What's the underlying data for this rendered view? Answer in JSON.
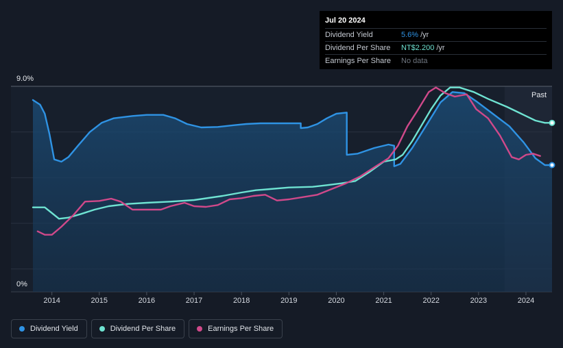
{
  "chart_data": {
    "type": "line",
    "x_start": 2013.6,
    "x_end": 2024.55,
    "ylim": [
      0,
      9.0
    ],
    "y_tick_labels": [
      "9.0%",
      "0%"
    ],
    "x_ticks": [
      2014,
      2015,
      2016,
      2017,
      2018,
      2019,
      2020,
      2021,
      2022,
      2023,
      2024
    ],
    "past_label": "Past",
    "forecast_start": 2023.55,
    "series": [
      {
        "name": "Dividend Yield",
        "color": "#2f93e4",
        "filled": true,
        "points": [
          [
            2013.6,
            8.4
          ],
          [
            2013.75,
            8.2
          ],
          [
            2013.85,
            7.8
          ],
          [
            2013.95,
            6.9
          ],
          [
            2014.05,
            5.8
          ],
          [
            2014.2,
            5.7
          ],
          [
            2014.35,
            5.9
          ],
          [
            2014.55,
            6.4
          ],
          [
            2014.8,
            7.0
          ],
          [
            2015.05,
            7.4
          ],
          [
            2015.3,
            7.6
          ],
          [
            2015.7,
            7.7
          ],
          [
            2016.0,
            7.75
          ],
          [
            2016.35,
            7.75
          ],
          [
            2016.6,
            7.6
          ],
          [
            2016.85,
            7.35
          ],
          [
            2017.15,
            7.2
          ],
          [
            2017.5,
            7.22
          ],
          [
            2017.85,
            7.3
          ],
          [
            2018.1,
            7.35
          ],
          [
            2018.4,
            7.38
          ],
          [
            2019.25,
            7.38
          ],
          [
            2019.25,
            7.17
          ],
          [
            2019.4,
            7.2
          ],
          [
            2019.6,
            7.35
          ],
          [
            2019.8,
            7.6
          ],
          [
            2020.0,
            7.8
          ],
          [
            2020.22,
            7.85
          ],
          [
            2020.22,
            6.0
          ],
          [
            2020.45,
            6.05
          ],
          [
            2020.8,
            6.3
          ],
          [
            2021.1,
            6.45
          ],
          [
            2021.22,
            6.4
          ],
          [
            2021.22,
            5.5
          ],
          [
            2021.35,
            5.6
          ],
          [
            2021.6,
            6.3
          ],
          [
            2021.9,
            7.3
          ],
          [
            2022.2,
            8.3
          ],
          [
            2022.45,
            8.75
          ],
          [
            2022.7,
            8.7
          ],
          [
            2022.95,
            8.35
          ],
          [
            2023.3,
            7.8
          ],
          [
            2023.65,
            7.25
          ],
          [
            2023.95,
            6.55
          ],
          [
            2024.2,
            5.85
          ],
          [
            2024.4,
            5.55
          ],
          [
            2024.55,
            5.55
          ]
        ]
      },
      {
        "name": "Dividend Per Share",
        "color": "#6fe3d2",
        "filled": false,
        "points": [
          [
            2013.6,
            3.7
          ],
          [
            2013.85,
            3.7
          ],
          [
            2014.0,
            3.45
          ],
          [
            2014.15,
            3.2
          ],
          [
            2014.35,
            3.25
          ],
          [
            2014.6,
            3.4
          ],
          [
            2014.9,
            3.6
          ],
          [
            2015.2,
            3.75
          ],
          [
            2015.6,
            3.85
          ],
          [
            2016.0,
            3.9
          ],
          [
            2016.5,
            3.95
          ],
          [
            2017.0,
            4.02
          ],
          [
            2017.2,
            4.08
          ],
          [
            2017.6,
            4.2
          ],
          [
            2018.0,
            4.35
          ],
          [
            2018.3,
            4.45
          ],
          [
            2018.6,
            4.5
          ],
          [
            2019.0,
            4.57
          ],
          [
            2019.5,
            4.6
          ],
          [
            2019.8,
            4.67
          ],
          [
            2020.1,
            4.75
          ],
          [
            2020.4,
            4.85
          ],
          [
            2020.7,
            5.25
          ],
          [
            2021.0,
            5.7
          ],
          [
            2021.25,
            5.8
          ],
          [
            2021.4,
            6.0
          ],
          [
            2021.6,
            6.6
          ],
          [
            2021.8,
            7.3
          ],
          [
            2022.0,
            8.0
          ],
          [
            2022.2,
            8.6
          ],
          [
            2022.4,
            8.95
          ],
          [
            2022.6,
            8.95
          ],
          [
            2022.9,
            8.75
          ],
          [
            2023.2,
            8.45
          ],
          [
            2023.6,
            8.1
          ],
          [
            2023.9,
            7.8
          ],
          [
            2024.2,
            7.5
          ],
          [
            2024.4,
            7.4
          ],
          [
            2024.55,
            7.4
          ]
        ]
      },
      {
        "name": "Earnings Per Share",
        "color": "#d0498a",
        "filled": false,
        "points": [
          [
            2013.7,
            2.65
          ],
          [
            2013.85,
            2.5
          ],
          [
            2014.0,
            2.5
          ],
          [
            2014.2,
            2.85
          ],
          [
            2014.45,
            3.35
          ],
          [
            2014.7,
            3.95
          ],
          [
            2015.0,
            3.98
          ],
          [
            2015.25,
            4.08
          ],
          [
            2015.45,
            3.95
          ],
          [
            2015.7,
            3.6
          ],
          [
            2016.0,
            3.6
          ],
          [
            2016.3,
            3.6
          ],
          [
            2016.5,
            3.75
          ],
          [
            2016.8,
            3.9
          ],
          [
            2017.0,
            3.75
          ],
          [
            2017.25,
            3.72
          ],
          [
            2017.5,
            3.8
          ],
          [
            2017.75,
            4.05
          ],
          [
            2018.0,
            4.1
          ],
          [
            2018.25,
            4.2
          ],
          [
            2018.5,
            4.25
          ],
          [
            2018.75,
            4.0
          ],
          [
            2019.0,
            4.05
          ],
          [
            2019.3,
            4.15
          ],
          [
            2019.6,
            4.25
          ],
          [
            2019.9,
            4.5
          ],
          [
            2020.2,
            4.75
          ],
          [
            2020.5,
            5.05
          ],
          [
            2020.8,
            5.45
          ],
          [
            2021.1,
            5.85
          ],
          [
            2021.3,
            6.4
          ],
          [
            2021.5,
            7.25
          ],
          [
            2021.7,
            7.9
          ],
          [
            2021.95,
            8.75
          ],
          [
            2022.1,
            8.95
          ],
          [
            2022.3,
            8.7
          ],
          [
            2022.5,
            8.55
          ],
          [
            2022.75,
            8.65
          ],
          [
            2022.95,
            8.0
          ],
          [
            2023.2,
            7.6
          ],
          [
            2023.45,
            6.85
          ],
          [
            2023.7,
            5.9
          ],
          [
            2023.85,
            5.8
          ],
          [
            2024.0,
            6.0
          ],
          [
            2024.15,
            6.05
          ],
          [
            2024.3,
            5.95
          ]
        ]
      }
    ]
  },
  "tooltip": {
    "date": "Jul 20 2024",
    "rows": [
      {
        "name": "Dividend Yield",
        "value": "5.6%",
        "unit": "/yr",
        "color": "#2f93e4"
      },
      {
        "name": "Dividend Per Share",
        "value": "NT$2.200",
        "unit": "/yr",
        "color": "#6fe3d2"
      },
      {
        "name": "Earnings Per Share",
        "value": "No data",
        "unit": "",
        "color": "#6f7680"
      }
    ]
  },
  "legend": {
    "items": [
      {
        "label": "Dividend Yield",
        "color": "#2f93e4"
      },
      {
        "label": "Dividend Per Share",
        "color": "#6fe3d2"
      },
      {
        "label": "Earnings Per Share",
        "color": "#d0498a"
      }
    ]
  }
}
